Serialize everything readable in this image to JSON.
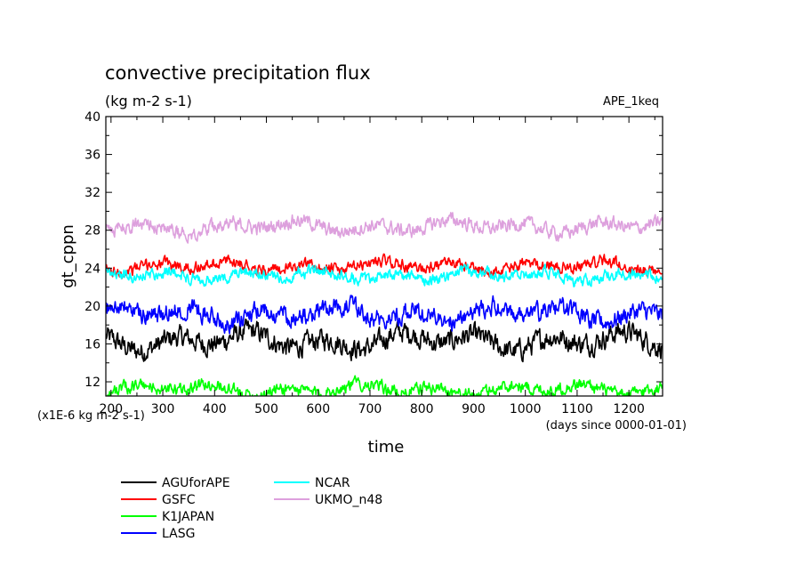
{
  "chart_data": {
    "type": "line",
    "title": "convective precipitation flux",
    "subtitle": "(kg m-2 s-1)",
    "label_right": "APE_1keq",
    "xlabel": "time",
    "ylabel": "gt_cppn",
    "x_unit": "(days since 0000-01-01)",
    "y_unit": "(x1E-6 kg m-2 s-1)",
    "xlim": [
      190,
      1265
    ],
    "ylim": [
      10.5,
      40
    ],
    "xticks": [
      200,
      300,
      400,
      500,
      600,
      700,
      800,
      900,
      1000,
      1100,
      1200
    ],
    "xtick_labels": [
      "200",
      "300",
      "400",
      "500",
      "600",
      "700",
      "800",
      "900",
      "1000",
      "1100",
      "1200"
    ],
    "yticks": [
      12,
      16,
      20,
      24,
      28,
      32,
      36,
      40
    ],
    "ytick_labels": [
      "12",
      "16",
      "20",
      "24",
      "28",
      "32",
      "36",
      "40"
    ],
    "grid": false,
    "legend_position": "bottom-left",
    "x_start": 190,
    "x_end": 1265,
    "sample_interval_days": 1.2,
    "series": [
      {
        "name": "AGUforAPE",
        "color": "#000000",
        "mean": 16.3,
        "amplitude": 1.8
      },
      {
        "name": "GSFC",
        "color": "#ff0000",
        "mean": 24.2,
        "amplitude": 1.0
      },
      {
        "name": "K1JAPAN",
        "color": "#00ff00",
        "mean": 11.2,
        "amplitude": 1.1
      },
      {
        "name": "LASG",
        "color": "#0000ff",
        "mean": 19.2,
        "amplitude": 1.6
      },
      {
        "name": "NCAR",
        "color": "#00ffff",
        "mean": 23.2,
        "amplitude": 1.0
      },
      {
        "name": "UKMO_n48",
        "color": "#dda0dd",
        "mean": 28.4,
        "amplitude": 1.2
      }
    ]
  }
}
